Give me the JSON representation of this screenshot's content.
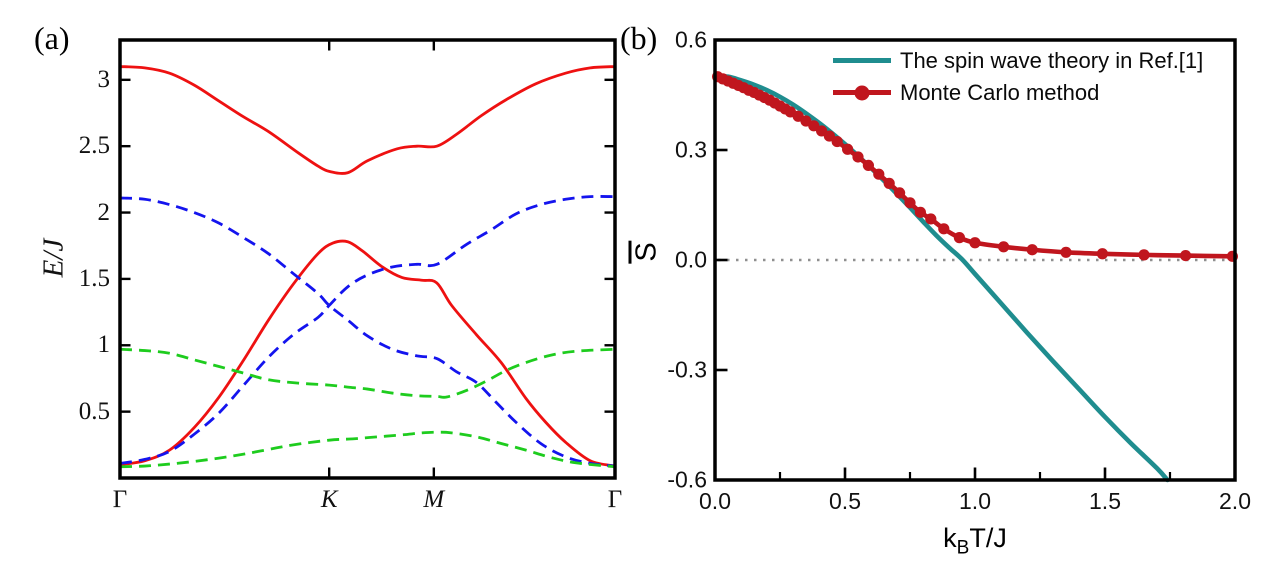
{
  "figure": {
    "background": "#ffffff"
  },
  "chart_data": [
    {
      "panel_label": "(a)",
      "type": "line",
      "title": "",
      "xlabel": "",
      "ylabel": "E/J",
      "x_axis": {
        "kind": "k-path",
        "tick_labels": [
          {
            "text": "Γ",
            "italic": false
          },
          {
            "text": "K",
            "italic": true
          },
          {
            "text": "M",
            "italic": true
          },
          {
            "text": "Γ",
            "italic": false
          }
        ],
        "tick_positions": [
          0,
          0.4226,
          0.634,
          1
        ],
        "xlim": [
          0,
          1
        ]
      },
      "y_axis": {
        "tick_values": [
          3,
          2.5,
          2,
          1.5,
          1,
          0.5
        ],
        "tick_labels": [
          "3",
          "2.5",
          "2",
          "1.5",
          "1",
          "0.5"
        ],
        "ylim": [
          0,
          3.3
        ]
      },
      "series": [
        {
          "name": "band-red-upper",
          "color": "#EE1111",
          "style": "solid",
          "points": [
            [
              0,
              3.1
            ],
            [
              0.05,
              3.09
            ],
            [
              0.1,
              3.05
            ],
            [
              0.15,
              2.96
            ],
            [
              0.2,
              2.84
            ],
            [
              0.25,
              2.72
            ],
            [
              0.3,
              2.61
            ],
            [
              0.36,
              2.45
            ],
            [
              0.4,
              2.35
            ],
            [
              0.4226,
              2.31
            ],
            [
              0.46,
              2.3
            ],
            [
              0.5,
              2.39
            ],
            [
              0.56,
              2.48
            ],
            [
              0.6,
              2.5
            ],
            [
              0.64,
              2.5
            ],
            [
              0.68,
              2.59
            ],
            [
              0.73,
              2.73
            ],
            [
              0.78,
              2.85
            ],
            [
              0.84,
              2.97
            ],
            [
              0.9,
              3.05
            ],
            [
              0.95,
              3.09
            ],
            [
              1,
              3.1
            ]
          ]
        },
        {
          "name": "band-red-lower",
          "color": "#EE1111",
          "style": "solid",
          "points": [
            [
              0,
              0.1
            ],
            [
              0.05,
              0.13
            ],
            [
              0.1,
              0.21
            ],
            [
              0.15,
              0.38
            ],
            [
              0.2,
              0.61
            ],
            [
              0.25,
              0.89
            ],
            [
              0.3,
              1.19
            ],
            [
              0.35,
              1.46
            ],
            [
              0.4,
              1.69
            ],
            [
              0.43,
              1.77
            ],
            [
              0.46,
              1.78
            ],
            [
              0.49,
              1.71
            ],
            [
              0.53,
              1.59
            ],
            [
              0.57,
              1.51
            ],
            [
              0.61,
              1.49
            ],
            [
              0.64,
              1.47
            ],
            [
              0.67,
              1.3
            ],
            [
              0.72,
              1.08
            ],
            [
              0.77,
              0.87
            ],
            [
              0.82,
              0.6
            ],
            [
              0.86,
              0.42
            ],
            [
              0.9,
              0.27
            ],
            [
              0.95,
              0.13
            ],
            [
              1,
              0.09
            ]
          ]
        },
        {
          "name": "band-blue-descending",
          "color": "#1414EE",
          "style": "dashed",
          "points": [
            [
              0,
              2.11
            ],
            [
              0.05,
              2.1
            ],
            [
              0.1,
              2.06
            ],
            [
              0.15,
              2.0
            ],
            [
              0.2,
              1.92
            ],
            [
              0.25,
              1.81
            ],
            [
              0.3,
              1.69
            ],
            [
              0.35,
              1.54
            ],
            [
              0.4,
              1.39
            ],
            [
              0.4226,
              1.3
            ],
            [
              0.46,
              1.19
            ],
            [
              0.5,
              1.07
            ],
            [
              0.55,
              0.97
            ],
            [
              0.6,
              0.92
            ],
            [
              0.64,
              0.9
            ],
            [
              0.68,
              0.8
            ],
            [
              0.72,
              0.72
            ],
            [
              0.76,
              0.57
            ],
            [
              0.8,
              0.42
            ],
            [
              0.85,
              0.26
            ],
            [
              0.9,
              0.16
            ],
            [
              0.95,
              0.11
            ],
            [
              1,
              0.09
            ]
          ]
        },
        {
          "name": "band-blue-ascending",
          "color": "#1414EE",
          "style": "dashed",
          "points": [
            [
              0,
              0.11
            ],
            [
              0.05,
              0.14
            ],
            [
              0.1,
              0.2
            ],
            [
              0.15,
              0.33
            ],
            [
              0.2,
              0.49
            ],
            [
              0.25,
              0.7
            ],
            [
              0.3,
              0.91
            ],
            [
              0.35,
              1.08
            ],
            [
              0.4,
              1.21
            ],
            [
              0.4226,
              1.3
            ],
            [
              0.46,
              1.44
            ],
            [
              0.5,
              1.53
            ],
            [
              0.55,
              1.59
            ],
            [
              0.6,
              1.61
            ],
            [
              0.64,
              1.61
            ],
            [
              0.7,
              1.76
            ],
            [
              0.75,
              1.87
            ],
            [
              0.8,
              1.99
            ],
            [
              0.85,
              2.06
            ],
            [
              0.9,
              2.1
            ],
            [
              0.95,
              2.12
            ],
            [
              1,
              2.12
            ]
          ]
        },
        {
          "name": "band-green-upper",
          "color": "#1ECC1E",
          "style": "dashed",
          "points": [
            [
              0,
              0.97
            ],
            [
              0.05,
              0.96
            ],
            [
              0.1,
              0.94
            ],
            [
              0.15,
              0.89
            ],
            [
              0.2,
              0.84
            ],
            [
              0.25,
              0.79
            ],
            [
              0.3,
              0.74
            ],
            [
              0.36,
              0.715
            ],
            [
              0.4226,
              0.7
            ],
            [
              0.46,
              0.685
            ],
            [
              0.5,
              0.67
            ],
            [
              0.55,
              0.64
            ],
            [
              0.6,
              0.62
            ],
            [
              0.64,
              0.615
            ],
            [
              0.66,
              0.61
            ],
            [
              0.7,
              0.66
            ],
            [
              0.74,
              0.73
            ],
            [
              0.78,
              0.81
            ],
            [
              0.82,
              0.87
            ],
            [
              0.87,
              0.925
            ],
            [
              0.92,
              0.955
            ],
            [
              1,
              0.97
            ]
          ]
        },
        {
          "name": "band-green-lower",
          "color": "#1ECC1E",
          "style": "dashed",
          "points": [
            [
              0,
              0.085
            ],
            [
              0.05,
              0.09
            ],
            [
              0.1,
              0.105
            ],
            [
              0.15,
              0.125
            ],
            [
              0.2,
              0.15
            ],
            [
              0.25,
              0.18
            ],
            [
              0.3,
              0.215
            ],
            [
              0.35,
              0.25
            ],
            [
              0.4226,
              0.285
            ],
            [
              0.47,
              0.295
            ],
            [
              0.52,
              0.31
            ],
            [
              0.57,
              0.325
            ],
            [
              0.61,
              0.34
            ],
            [
              0.64,
              0.345
            ],
            [
              0.67,
              0.34
            ],
            [
              0.72,
              0.31
            ],
            [
              0.77,
              0.26
            ],
            [
              0.82,
              0.21
            ],
            [
              0.87,
              0.155
            ],
            [
              0.92,
              0.115
            ],
            [
              1,
              0.085
            ]
          ]
        }
      ]
    },
    {
      "panel_label": "(b)",
      "type": "line",
      "title": "",
      "xlabel": "kBT/J",
      "xlabel_parts": [
        "k",
        "B",
        "T/J"
      ],
      "ylabel": "S̄",
      "ylabel_letter": "S",
      "x_axis": {
        "tick_values": [
          0,
          0.5,
          1,
          1.5,
          2
        ],
        "tick_labels": [
          "0.0",
          "0.5",
          "1.0",
          "1.5",
          "2.0"
        ],
        "minor_ticks": [
          0.25,
          0.75,
          1.25,
          1.75
        ],
        "xlim": [
          0,
          2
        ]
      },
      "y_axis": {
        "tick_values": [
          0.6,
          0.3,
          0,
          -0.3,
          -0.6
        ],
        "tick_labels": [
          "0.6",
          "0.3",
          "0.0",
          "-0.3",
          "-0.6"
        ],
        "ylim": [
          -0.6,
          0.6
        ]
      },
      "zero_line": {
        "y": 0,
        "color": "#8f8f8f",
        "style": "dotted"
      },
      "legend_position": "top-right-inside",
      "series": [
        {
          "name": "The spin wave theory in Ref.[1]",
          "color": "#1F8D8F",
          "style": "solid",
          "marker": "none",
          "points": [
            [
              0,
              0.502
            ],
            [
              0.05,
              0.5
            ],
            [
              0.1,
              0.49
            ],
            [
              0.15,
              0.478
            ],
            [
              0.2,
              0.463
            ],
            [
              0.25,
              0.445
            ],
            [
              0.3,
              0.424
            ],
            [
              0.35,
              0.4
            ],
            [
              0.4,
              0.374
            ],
            [
              0.45,
              0.346
            ],
            [
              0.5,
              0.316
            ],
            [
              0.55,
              0.284
            ],
            [
              0.6,
              0.251
            ],
            [
              0.65,
              0.216
            ],
            [
              0.7,
              0.18
            ],
            [
              0.75,
              0.143
            ],
            [
              0.8,
              0.105
            ],
            [
              0.85,
              0.068
            ],
            [
              0.9,
              0.034
            ],
            [
              0.95,
              0.002
            ],
            [
              1.0,
              -0.038
            ],
            [
              1.1,
              -0.118
            ],
            [
              1.2,
              -0.198
            ],
            [
              1.3,
              -0.276
            ],
            [
              1.4,
              -0.352
            ],
            [
              1.5,
              -0.428
            ],
            [
              1.6,
              -0.5
            ],
            [
              1.7,
              -0.568
            ],
            [
              1.74,
              -0.6
            ]
          ]
        },
        {
          "name": "Monte Carlo method",
          "color": "#C0161E",
          "style": "solid",
          "marker": "circle",
          "points": [
            [
              0.01,
              0.5
            ],
            [
              0.03,
              0.494
            ],
            [
              0.05,
              0.488
            ],
            [
              0.07,
              0.482
            ],
            [
              0.09,
              0.476
            ],
            [
              0.11,
              0.47
            ],
            [
              0.13,
              0.463
            ],
            [
              0.15,
              0.457
            ],
            [
              0.17,
              0.45
            ],
            [
              0.19,
              0.443
            ],
            [
              0.21,
              0.436
            ],
            [
              0.23,
              0.428
            ],
            [
              0.25,
              0.42
            ],
            [
              0.27,
              0.412
            ],
            [
              0.29,
              0.404
            ],
            [
              0.32,
              0.392
            ],
            [
              0.35,
              0.379
            ],
            [
              0.38,
              0.366
            ],
            [
              0.41,
              0.352
            ],
            [
              0.44,
              0.338
            ],
            [
              0.47,
              0.323
            ],
            [
              0.51,
              0.302
            ],
            [
              0.55,
              0.281
            ],
            [
              0.59,
              0.258
            ],
            [
              0.63,
              0.234
            ],
            [
              0.67,
              0.209
            ],
            [
              0.71,
              0.183
            ],
            [
              0.75,
              0.156
            ],
            [
              0.79,
              0.13
            ],
            [
              0.83,
              0.112
            ],
            [
              0.88,
              0.085
            ],
            [
              0.94,
              0.061
            ],
            [
              1.0,
              0.047
            ],
            [
              1.11,
              0.036
            ],
            [
              1.22,
              0.028
            ],
            [
              1.35,
              0.021
            ],
            [
              1.49,
              0.017
            ],
            [
              1.65,
              0.014
            ],
            [
              1.81,
              0.012
            ],
            [
              1.99,
              0.01
            ]
          ]
        }
      ]
    }
  ]
}
